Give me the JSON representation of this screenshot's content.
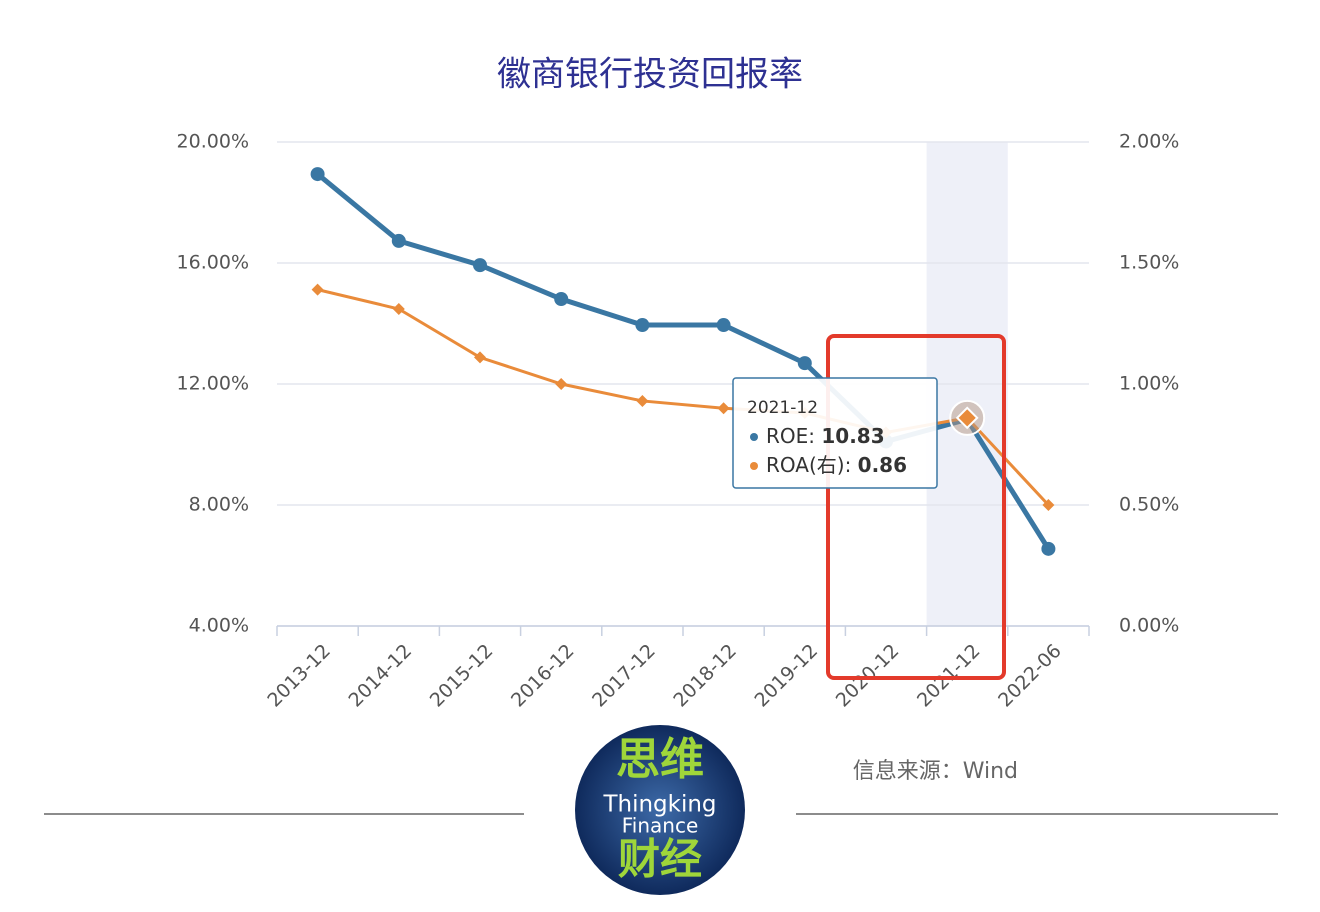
{
  "chart_data": {
    "type": "line",
    "title": "徽商银行投资回报率",
    "categories": [
      "2013-12",
      "2014-12",
      "2015-12",
      "2016-12",
      "2017-12",
      "2018-12",
      "2019-12",
      "2020-12",
      "2021-12",
      "2022-06"
    ],
    "series": [
      {
        "name": "ROE",
        "color": "#3a77a3",
        "values": [
          18.94,
          16.73,
          15.93,
          14.81,
          13.95,
          13.95,
          12.69,
          10.1,
          10.83,
          6.55
        ]
      },
      {
        "name": "ROA(右)",
        "color": "#e98b3a",
        "axis": "y2",
        "values": [
          1.39,
          1.31,
          1.11,
          1.0,
          0.93,
          0.9,
          0.88,
          0.8,
          0.86,
          0.5
        ]
      }
    ],
    "ylim": [
      4,
      20
    ],
    "yticks": [
      {
        "value": 4,
        "label": "4.00%"
      },
      {
        "value": 8,
        "label": "8.00%"
      },
      {
        "value": 12,
        "label": "12.00%"
      },
      {
        "value": 16,
        "label": "16.00%"
      },
      {
        "value": 20,
        "label": "20.00%"
      }
    ],
    "y2lim": [
      0,
      2
    ],
    "y2ticks": [
      {
        "value": 0,
        "label": "0.00%"
      },
      {
        "value": 0.5,
        "label": "0.50%"
      },
      {
        "value": 1,
        "label": "1.00%"
      },
      {
        "value": 1.5,
        "label": "1.50%"
      },
      {
        "value": 2,
        "label": "2.00%"
      }
    ],
    "grid": true,
    "highlight_index": 8,
    "tooltip": {
      "category": "2021-12",
      "items": [
        {
          "label": "ROE: ",
          "value": "10.83"
        },
        {
          "label": "ROA(右): ",
          "value": "0.86"
        }
      ]
    },
    "source": "信息来源：Wind"
  },
  "logo": {
    "top": "思维",
    "line1": "Thingking",
    "line2": "Finance",
    "bottom": "财经"
  }
}
